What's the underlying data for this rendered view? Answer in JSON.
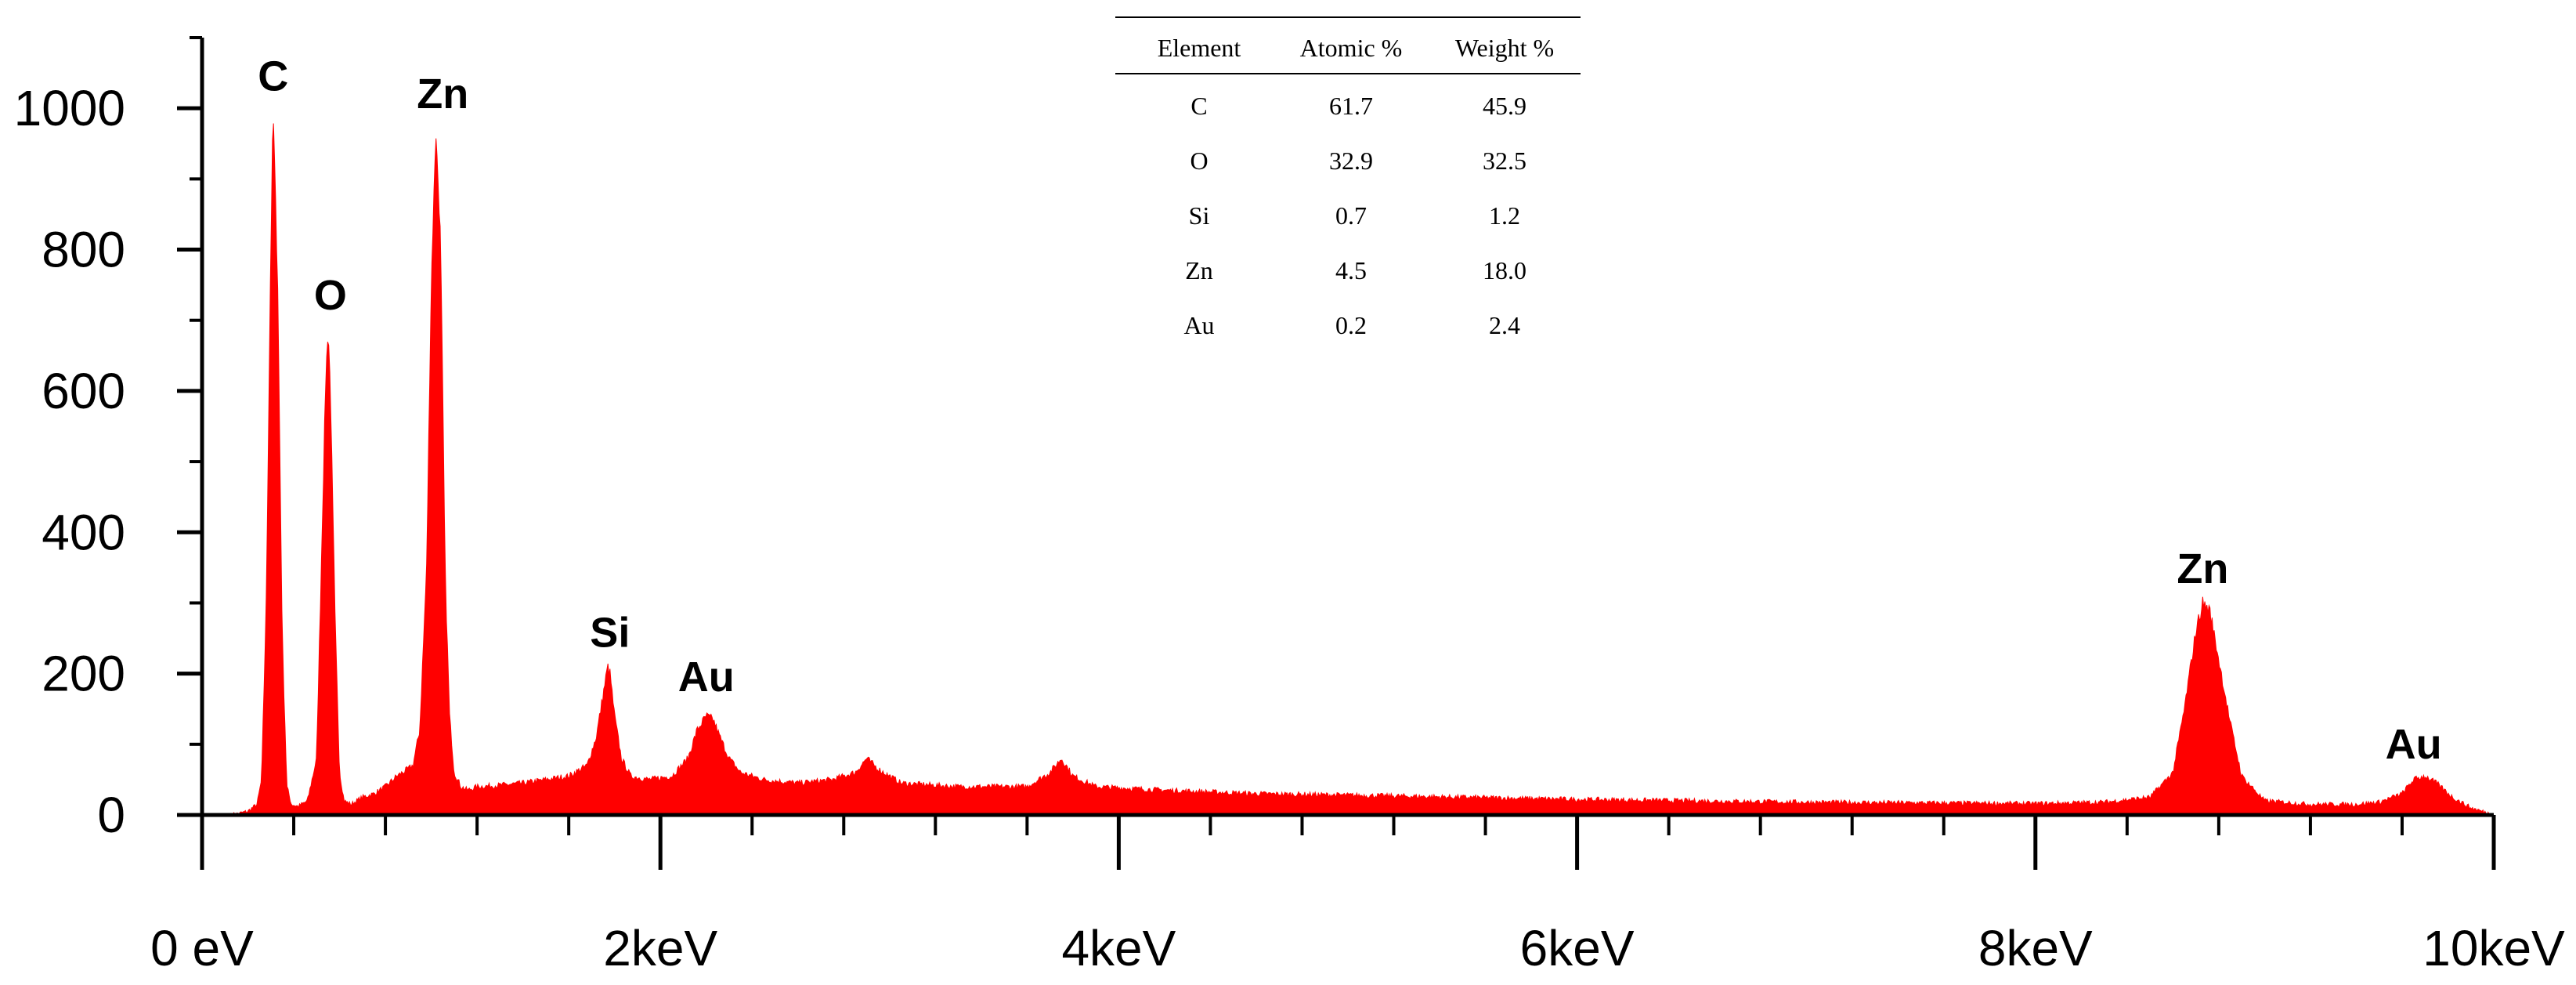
{
  "chart_data": {
    "type": "area",
    "title": "",
    "xlabel": "",
    "ylabel": "",
    "xlim": [
      0,
      10
    ],
    "ylim": [
      0,
      1100
    ],
    "fill_color": "#ff0000",
    "grid": false,
    "x_ticks": [
      {
        "value": 0,
        "label": "0 eV"
      },
      {
        "value": 2,
        "label": "2keV"
      },
      {
        "value": 4,
        "label": "4keV"
      },
      {
        "value": 6,
        "label": "6keV"
      },
      {
        "value": 8,
        "label": "8keV"
      },
      {
        "value": 10,
        "label": "10keV"
      }
    ],
    "y_ticks": [
      {
        "value": 0,
        "label": "0"
      },
      {
        "value": 200,
        "label": "200"
      },
      {
        "value": 400,
        "label": "400"
      },
      {
        "value": 600,
        "label": "600"
      },
      {
        "value": 800,
        "label": "800"
      },
      {
        "value": 1000,
        "label": "1000"
      }
    ],
    "x_minor_step": 0.4,
    "spectrum": {
      "x": [
        0.13,
        0.2,
        0.24,
        0.26,
        0.28,
        0.3,
        0.31,
        0.33,
        0.35,
        0.37,
        0.39,
        0.42,
        0.46,
        0.5,
        0.52,
        0.54,
        0.55,
        0.56,
        0.58,
        0.6,
        0.62,
        0.65,
        0.7,
        0.75,
        0.8,
        0.85,
        0.9,
        0.92,
        0.95,
        0.98,
        1.0,
        1.02,
        1.04,
        1.05,
        1.06,
        1.08,
        1.1,
        1.13,
        1.16,
        1.2,
        1.3,
        1.4,
        1.5,
        1.6,
        1.68,
        1.72,
        1.75,
        1.77,
        1.78,
        1.8,
        1.83,
        1.87,
        1.95,
        2.05,
        2.12,
        2.16,
        2.2,
        2.23,
        2.26,
        2.3,
        2.35,
        2.45,
        2.6,
        2.75,
        2.85,
        2.9,
        2.95,
        3.05,
        3.3,
        3.6,
        3.7,
        3.75,
        3.8,
        3.9,
        4.2,
        4.6,
        5.0,
        5.5,
        6.0,
        6.5,
        7.0,
        7.5,
        8.0,
        8.3,
        8.5,
        8.6,
        8.65,
        8.7,
        8.73,
        8.76,
        8.8,
        8.85,
        8.9,
        9.0,
        9.2,
        9.4,
        9.5,
        9.6,
        9.65,
        9.7,
        9.75,
        9.82,
        9.9,
        10.0
      ],
      "y": [
        0,
        5,
        15,
        50,
        300,
        800,
        1000,
        750,
        250,
        40,
        15,
        12,
        20,
        80,
        350,
        620,
        690,
        600,
        280,
        60,
        20,
        15,
        25,
        30,
        40,
        55,
        65,
        70,
        120,
        350,
        750,
        970,
        820,
        600,
        350,
        140,
        60,
        40,
        35,
        40,
        42,
        45,
        50,
        55,
        70,
        110,
        170,
        210,
        200,
        140,
        80,
        55,
        50,
        55,
        80,
        120,
        140,
        135,
        110,
        80,
        60,
        50,
        45,
        50,
        60,
        80,
        65,
        45,
        40,
        40,
        60,
        80,
        55,
        40,
        35,
        30,
        28,
        25,
        22,
        20,
        18,
        17,
        16,
        18,
        25,
        60,
        150,
        260,
        300,
        290,
        220,
        130,
        55,
        20,
        15,
        15,
        18,
        30,
        50,
        55,
        45,
        25,
        10,
        0
      ]
    },
    "annotations": [
      {
        "text": "C",
        "x": 0.31,
        "y": 1025
      },
      {
        "text": "O",
        "x": 0.56,
        "y": 715
      },
      {
        "text": "Zn",
        "x": 1.05,
        "y": 1000
      },
      {
        "text": "Si",
        "x": 1.78,
        "y": 238
      },
      {
        "text": "Au",
        "x": 2.2,
        "y": 175
      },
      {
        "text": "Zn",
        "x": 8.73,
        "y": 328
      },
      {
        "text": "Au",
        "x": 9.65,
        "y": 80
      }
    ],
    "table": {
      "columns": [
        "Element",
        "Atomic %",
        "Weight %"
      ],
      "rows": [
        [
          "C",
          "61.7",
          "45.9"
        ],
        [
          "O",
          "32.9",
          "32.5"
        ],
        [
          "Si",
          "0.7",
          "1.2"
        ],
        [
          "Zn",
          "4.5",
          "18.0"
        ],
        [
          "Au",
          "0.2",
          "2.4"
        ]
      ]
    }
  }
}
